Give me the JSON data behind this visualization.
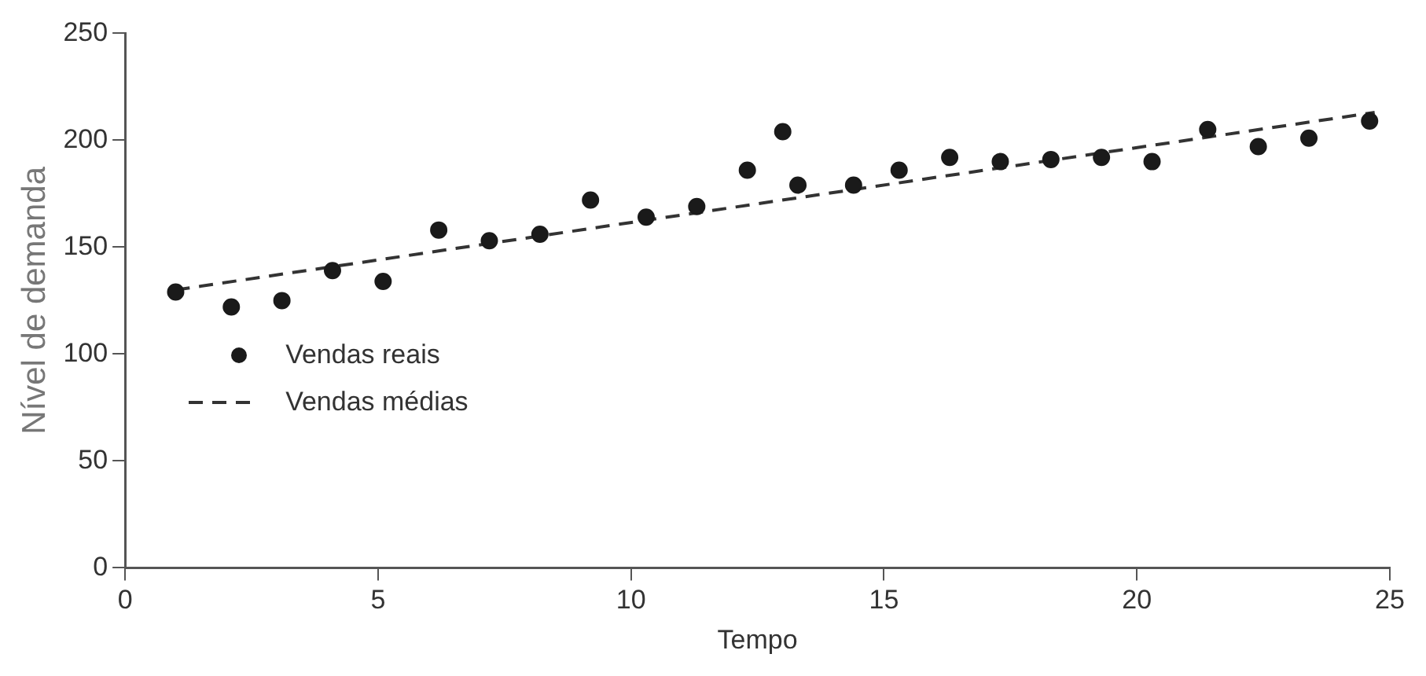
{
  "chart_data": {
    "type": "scatter",
    "xlabel": "Tempo",
    "ylabel": "Nível de demanda",
    "xlim": [
      0,
      25
    ],
    "xticks": [
      0,
      5,
      10,
      15,
      20,
      25
    ],
    "ylim": [
      0,
      250
    ],
    "yticks": [
      0,
      50,
      100,
      150,
      200,
      250
    ],
    "grid": false,
    "legend": "bottom left",
    "series": [
      {
        "name": "Vendas reais",
        "marker": "circle",
        "color": "#1a1a1a",
        "x": [
          1.0,
          2.1,
          3.1,
          4.1,
          5.1,
          6.2,
          7.2,
          8.2,
          9.2,
          10.3,
          11.3,
          12.3,
          13.0,
          13.3,
          14.4,
          15.3,
          16.3,
          17.3,
          18.3,
          19.3,
          20.3,
          21.4,
          22.4,
          23.4,
          24.6
        ],
        "values": [
          129,
          122,
          125,
          139,
          134,
          158,
          153,
          156,
          172,
          164,
          169,
          186,
          204,
          179,
          179,
          186,
          192,
          190,
          191,
          192,
          190,
          205,
          197,
          201,
          209
        ]
      },
      {
        "name": "Vendas médias",
        "type": "line",
        "line_style": "dashed",
        "marker": "none",
        "color": "#333333",
        "x": [
          1.0,
          24.7
        ],
        "values": [
          130,
          213
        ]
      }
    ]
  }
}
